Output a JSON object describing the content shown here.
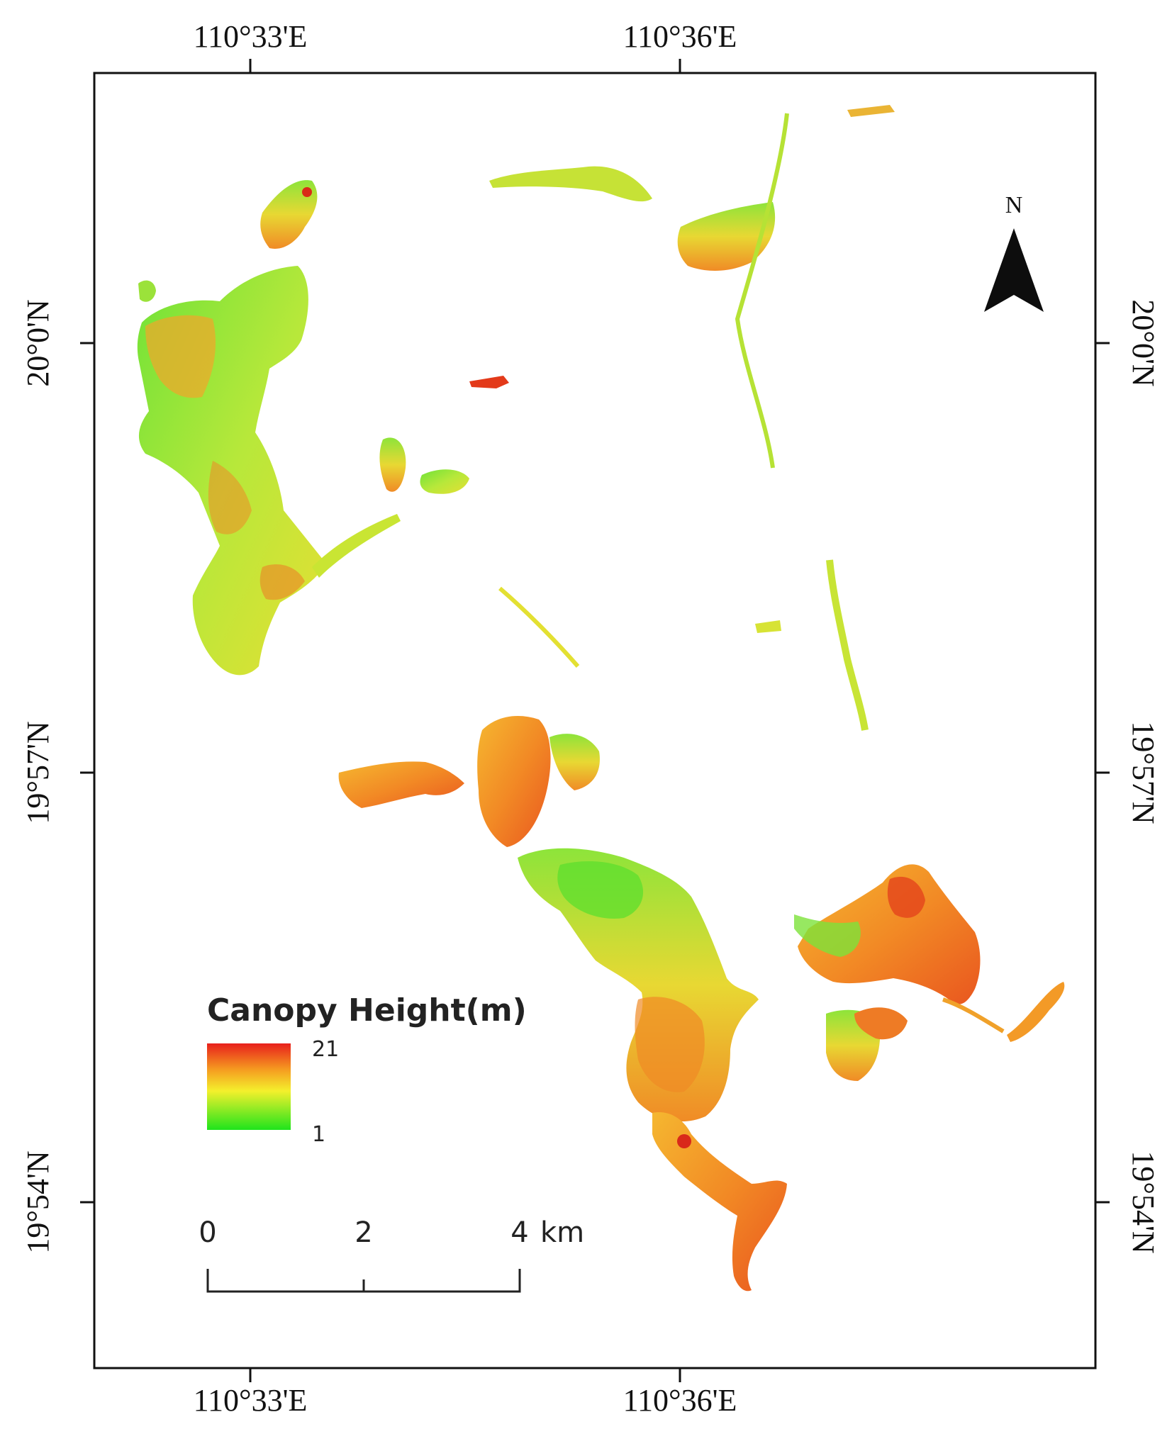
{
  "map": {
    "coordinates": {
      "top_lon": [
        "110°33'E",
        "110°36'E"
      ],
      "bottom_lon": [
        "110°33'E",
        "110°36'E"
      ],
      "left_lat": [
        "20°0'N",
        "19°57'N",
        "19°54'N"
      ],
      "right_lat": [
        "20°0'N",
        "19°57'N",
        "19°54'N"
      ]
    },
    "legend": {
      "title": "Canopy Height(m)",
      "max_label": "21",
      "min_label": "1",
      "colors": {
        "high": "#e8201c",
        "mid_high": "#f59b20",
        "mid": "#f4f02c",
        "low": "#1fe41c"
      }
    },
    "scale_bar": {
      "ticks": [
        "0",
        "2",
        "4"
      ],
      "unit": "km"
    },
    "north_arrow": {
      "label": "N",
      "icon": "north-arrow-icon"
    },
    "colors": {
      "frame": "#111111",
      "background": "#ffffff"
    }
  }
}
